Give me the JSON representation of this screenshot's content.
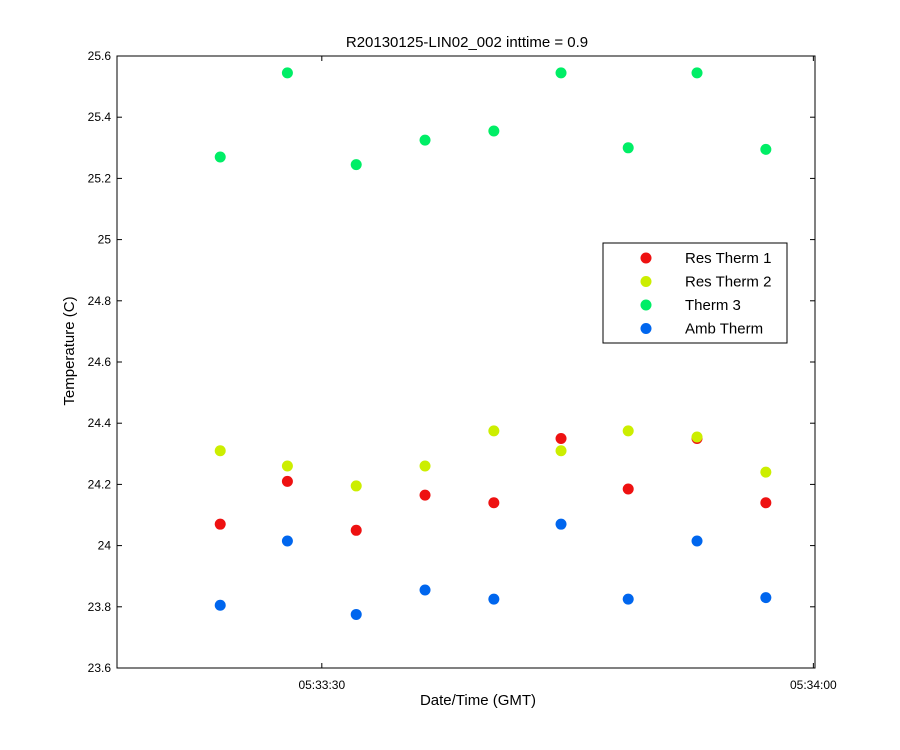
{
  "chart_data": {
    "type": "scatter",
    "title": "R20130125-LIN02_002 inttime = 0.9",
    "xlabel": "Date/Time (GMT)",
    "ylabel": "Temperature (C)",
    "x_tick_labels": [
      "05:33:30",
      "05:34:00"
    ],
    "xlim": [
      "05:33:17.5",
      "05:34:00.1"
    ],
    "ylim": [
      23.6,
      25.6
    ],
    "y_ticks": [
      23.6,
      23.8,
      24.0,
      24.2,
      24.4,
      24.6,
      24.8,
      25.0,
      25.2,
      25.4,
      25.6
    ],
    "y_tick_labels": [
      "23.6",
      "23.8",
      "24",
      "24.2",
      "24.4",
      "24.6",
      "24.8",
      "25",
      "25.2",
      "25.4",
      "25.6"
    ],
    "grid": false,
    "legend_position": "right",
    "x": [
      "05:33:23.8",
      "05:33:27.9",
      "05:33:32.1",
      "05:33:36.3",
      "05:33:40.5",
      "05:33:44.6",
      "05:33:48.7",
      "05:33:52.9",
      "05:33:57.1"
    ],
    "series": [
      {
        "name": "Res Therm 1",
        "color": "#ee1111",
        "values": [
          24.07,
          24.21,
          24.05,
          24.165,
          24.14,
          24.35,
          24.185,
          24.35,
          24.14
        ]
      },
      {
        "name": "Res Therm 2",
        "color": "#ccee00",
        "values": [
          24.31,
          24.26,
          24.195,
          24.26,
          24.375,
          24.31,
          24.375,
          24.355,
          24.24
        ]
      },
      {
        "name": "Therm 3",
        "color": "#00ee66",
        "values": [
          25.27,
          25.545,
          25.245,
          25.325,
          25.355,
          25.545,
          25.3,
          25.545,
          25.295
        ]
      },
      {
        "name": "Amb Therm",
        "color": "#0066ee",
        "values": [
          23.805,
          24.015,
          23.775,
          23.855,
          23.825,
          24.07,
          23.825,
          24.015,
          23.83
        ]
      }
    ]
  }
}
